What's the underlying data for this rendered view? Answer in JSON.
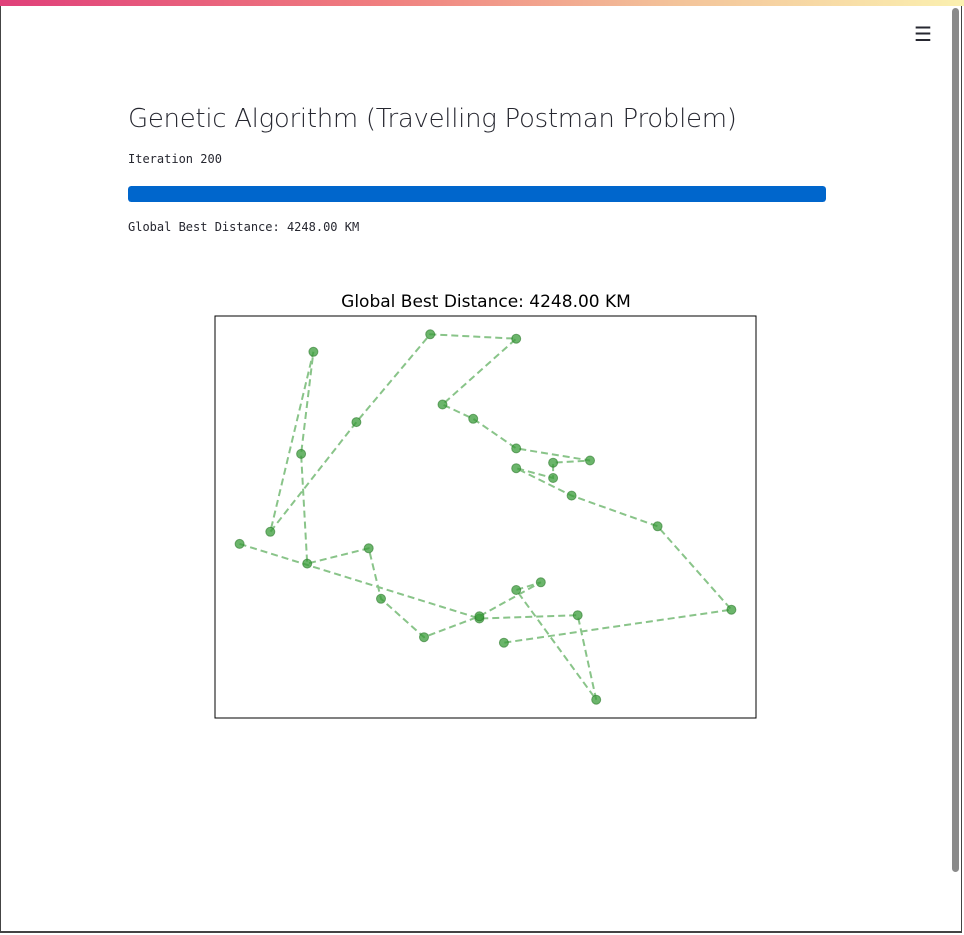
{
  "app": {
    "title": "Genetic Algorithm (Travelling Postman Problem)",
    "iteration_text": "Iteration 200",
    "progress": 1.0,
    "best_distance_text": "Global Best Distance: 4248.00 KM",
    "menu_icon": "hamburger-menu-icon",
    "colors": {
      "progress": "#0066cc",
      "route": "#3a9c3a"
    }
  },
  "chart_data": {
    "type": "scatter",
    "title": "Global Best Distance: 4248.00 KM",
    "xlabel": "",
    "ylabel": "",
    "grid": false,
    "points": [
      [
        13,
        315
      ],
      [
        52,
        383
      ],
      [
        68,
        380
      ],
      [
        71,
        457
      ],
      [
        58,
        357
      ],
      [
        62,
        350
      ],
      [
        52,
        381
      ],
      [
        43,
        400
      ],
      [
        36,
        365
      ],
      [
        34,
        319
      ],
      [
        24,
        333
      ],
      [
        23,
        233
      ],
      [
        25,
        140
      ],
      [
        18,
        304
      ],
      [
        32,
        204
      ],
      [
        44,
        124
      ],
      [
        58,
        128
      ],
      [
        46,
        188
      ],
      [
        51,
        201
      ],
      [
        58,
        228
      ],
      [
        70,
        239
      ],
      [
        64,
        241
      ],
      [
        64,
        255
      ],
      [
        58,
        246
      ],
      [
        67,
        271
      ],
      [
        81,
        299
      ],
      [
        93,
        375
      ],
      [
        56,
        405
      ]
    ]
  }
}
